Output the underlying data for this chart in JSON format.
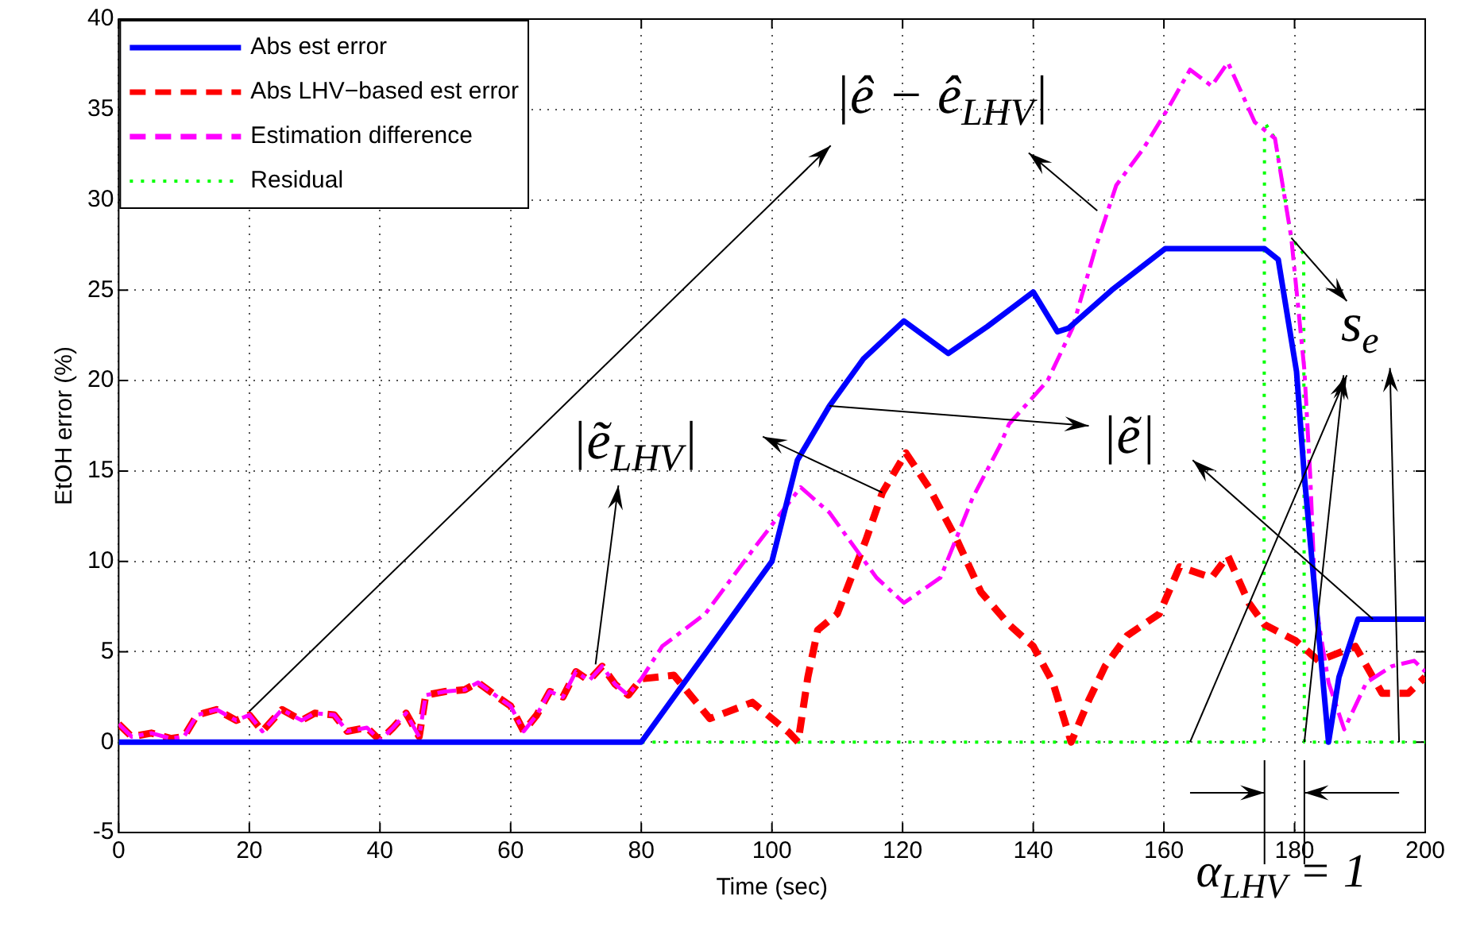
{
  "chart_data": {
    "type": "line",
    "xlabel": "Time (sec)",
    "ylabel": "EtOH error (%)",
    "xlim": [
      0,
      200
    ],
    "xticks": [
      0,
      20,
      40,
      60,
      80,
      100,
      120,
      140,
      160,
      180,
      200
    ],
    "ylim": [
      -5,
      40
    ],
    "yticks": [
      -5,
      0,
      5,
      10,
      15,
      20,
      25,
      30,
      35,
      40
    ],
    "grid": true,
    "legend": "top left",
    "marker": "none",
    "series": [
      {
        "name": "Abs est error",
        "color": "#0000ff",
        "line_style": "solid",
        "x": [
          0,
          80,
          100,
          103.9,
          108.8,
          114,
          120.2,
          127,
          133,
          140,
          143.7,
          145.4,
          152,
          160.2,
          175.4,
          177.5,
          180.3,
          181.5,
          185.2,
          186.8,
          189.7,
          200
        ],
        "values": [
          0,
          0,
          10,
          15.6,
          18.6,
          21.2,
          23.3,
          21.5,
          23,
          24.9,
          22.7,
          22.9,
          25,
          27.3,
          27.3,
          26.7,
          20.5,
          14.7,
          0,
          3.6,
          6.8,
          6.8
        ]
      },
      {
        "name": "Abs LHV−based est error",
        "color": "#ff0000",
        "line_style": "dashed",
        "x": [
          0,
          2,
          5,
          8,
          10,
          12,
          15,
          18,
          20,
          22,
          25,
          28,
          30,
          33,
          35,
          38,
          40,
          42,
          44,
          46,
          47,
          50,
          53,
          55,
          58,
          60,
          62,
          64,
          66,
          68,
          70,
          72,
          74,
          76,
          78,
          80,
          85,
          90.5,
          97,
          102.7,
          104,
          105.5,
          107,
          110,
          114.4,
          116.9,
          120.5,
          124,
          128.3,
          132,
          136.3,
          140,
          143,
          145.8,
          148.6,
          151,
          154.4,
          159.3,
          162.4,
          167.3,
          169.8,
          173,
          175.4,
          180.2,
          183.7,
          189.3,
          193.4,
          197.4,
          200
        ],
        "values": [
          1,
          0.3,
          0.5,
          0.2,
          0.3,
          1.5,
          1.8,
          1.2,
          1.5,
          0.6,
          1.8,
          1.2,
          1.6,
          1.5,
          0.6,
          0.8,
          0.1,
          0.8,
          1.6,
          0.3,
          2.6,
          2.8,
          2.9,
          3.3,
          2.5,
          2,
          0.6,
          1.5,
          2.8,
          2.5,
          3.9,
          3.4,
          4.2,
          3.2,
          2.6,
          3.5,
          3.7,
          1.3,
          2.2,
          0.5,
          0,
          3.6,
          6.2,
          7.1,
          11.2,
          13.8,
          16,
          14.1,
          11.2,
          8.3,
          6.5,
          5.3,
          3.3,
          0,
          2.4,
          4.2,
          5.9,
          7.1,
          9.7,
          9.1,
          10.3,
          7.7,
          6.5,
          5.6,
          4.5,
          5.3,
          2.7,
          2.7,
          3.6
        ]
      },
      {
        "name": "Estimation difference",
        "color": "#ff00ff",
        "line_style": "dashed",
        "x": [
          0,
          2,
          5,
          8,
          10,
          12,
          15,
          18,
          20,
          22,
          25,
          28,
          30,
          33,
          35,
          38,
          40,
          42,
          44,
          46,
          47,
          50,
          53,
          55,
          58,
          60,
          62,
          64,
          66,
          68,
          70,
          72,
          74,
          76,
          78,
          80,
          83.2,
          89.8,
          97,
          104.4,
          108.8,
          116,
          120.2,
          125.8,
          130.7,
          134.9,
          136.3,
          142.2,
          146,
          149.5,
          152.7,
          156.8,
          160.7,
          164,
          167.3,
          169.8,
          173.9,
          177,
          179.5,
          181.5,
          182.4,
          183.2,
          185.2,
          187.6,
          191,
          194.9,
          198.3,
          200
        ],
        "values": [
          1,
          0.3,
          0.5,
          0.2,
          0.3,
          1.5,
          1.8,
          1.2,
          1.5,
          0.6,
          1.8,
          1.2,
          1.6,
          1.5,
          0.6,
          0.8,
          0.1,
          0.8,
          1.6,
          0.3,
          2.6,
          2.8,
          2.9,
          3.3,
          2.5,
          2,
          0.6,
          1.5,
          2.8,
          2.5,
          3.9,
          3.4,
          4.2,
          3.2,
          2.6,
          3.5,
          5.3,
          7.1,
          10.6,
          14.1,
          12.7,
          9.1,
          7.7,
          9.1,
          13.5,
          16.4,
          17.6,
          20,
          22.9,
          27.3,
          30.8,
          32.8,
          35.1,
          37.2,
          36.3,
          37.6,
          34.3,
          33.4,
          27.9,
          20.6,
          14.7,
          7.7,
          3.3,
          0.7,
          3.3,
          4.2,
          4.5,
          3.9
        ]
      },
      {
        "name": "Residual",
        "color": "#00ff00",
        "line_style": "dotted",
        "x": [
          0,
          175.3,
          175.4,
          177,
          179.5,
          181.4,
          181.5,
          200
        ],
        "values": [
          0,
          0,
          34.3,
          33.4,
          27.9,
          27,
          0,
          0
        ]
      }
    ],
    "annotations": [
      "|ê − ê$_{LHV}$|",
      "|ẽ$_{LHV}$|",
      "|ẽ|",
      {
        "text": "s$_{e}$",
        "x": 179.5,
        "y": 27.9
      },
      "α$_{LHV}$ = 1"
    ]
  }
}
